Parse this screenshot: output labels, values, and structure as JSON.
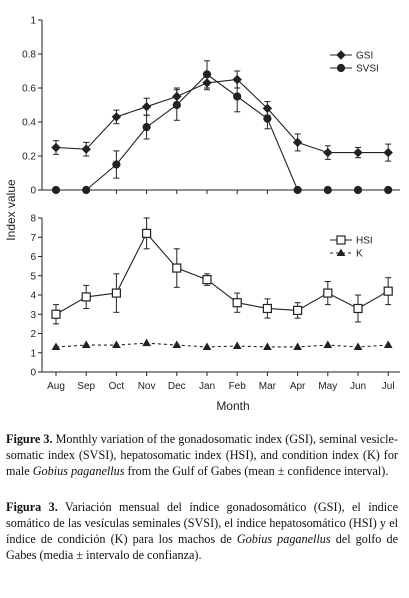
{
  "chart_data": [
    {
      "type": "line",
      "panel": "top",
      "x": [
        "Aug",
        "Sep",
        "Oct",
        "Nov",
        "Dec",
        "Jan",
        "Feb",
        "Mar",
        "Apr",
        "May",
        "Jun",
        "Jul"
      ],
      "ylim": [
        0,
        1
      ],
      "yticks": [
        "0",
        "0.2",
        "0.4",
        "0.6",
        "0.8",
        "1"
      ],
      "legend": "top-right",
      "series": [
        {
          "name": "GSI",
          "marker": "diamond-filled",
          "values": [
            0.25,
            0.24,
            0.43,
            0.49,
            0.55,
            0.63,
            0.65,
            0.48,
            0.28,
            0.22,
            0.22,
            0.22
          ],
          "errors": [
            0.04,
            0.04,
            0.04,
            0.05,
            0.05,
            0.04,
            0.05,
            0.04,
            0.05,
            0.04,
            0.03,
            0.05
          ]
        },
        {
          "name": "SVSI",
          "marker": "circle-filled",
          "values": [
            0,
            0,
            0.15,
            0.37,
            0.5,
            0.68,
            0.55,
            0.42,
            0,
            0,
            0,
            0
          ],
          "errors": [
            0,
            0,
            0.08,
            0.07,
            0.09,
            0.08,
            0.09,
            0.06,
            0,
            0,
            0,
            0
          ]
        }
      ]
    },
    {
      "type": "line",
      "panel": "bottom",
      "x": [
        "Aug",
        "Sep",
        "Oct",
        "Nov",
        "Dec",
        "Jan",
        "Feb",
        "Mar",
        "Apr",
        "May",
        "Jun",
        "Jul"
      ],
      "ylim": [
        0,
        8
      ],
      "yticks": [
        "0",
        "1",
        "2",
        "3",
        "4",
        "5",
        "6",
        "7",
        "8"
      ],
      "legend": "top-right",
      "series": [
        {
          "name": "HSI",
          "marker": "square-open",
          "values": [
            3.0,
            3.9,
            4.1,
            7.2,
            5.4,
            4.8,
            3.6,
            3.3,
            3.2,
            4.1,
            3.3,
            4.2
          ],
          "errors": [
            0.5,
            0.6,
            1.0,
            0.8,
            1.0,
            0.3,
            0.5,
            0.5,
            0.4,
            0.6,
            0.7,
            0.7
          ]
        },
        {
          "name": "K",
          "marker": "triangle-filled",
          "line": "dashed",
          "values": [
            1.3,
            1.4,
            1.4,
            1.5,
            1.4,
            1.3,
            1.35,
            1.3,
            1.3,
            1.4,
            1.3,
            1.4
          ]
        }
      ]
    }
  ],
  "axes": {
    "ylabel": "Index value",
    "xlabel": "Month"
  },
  "caption": {
    "en_label": "Figure 3.",
    "en_text_1": " Monthly variation of the gonadosomatic index (GSI), seminal vesicle-somatic index (SVSI), hepatosomatic index (HSI), and condition index (K) for male ",
    "en_species": "Gobius paganellus",
    "en_text_2": " from the Gulf of Gabes (mean ± confidence interval).",
    "es_label": "Figura 3.",
    "es_text_1": " Variación mensual del índice gonadosomático (GSI), el índice somático de las vesículas seminales (SVSI), el índice hepatosomático (HSI) y el índice de condición (K) para los machos de ",
    "es_species": "Gobius paganellus",
    "es_text_2": " del golfo de Gabes (media ± intervalo de confianza)."
  }
}
